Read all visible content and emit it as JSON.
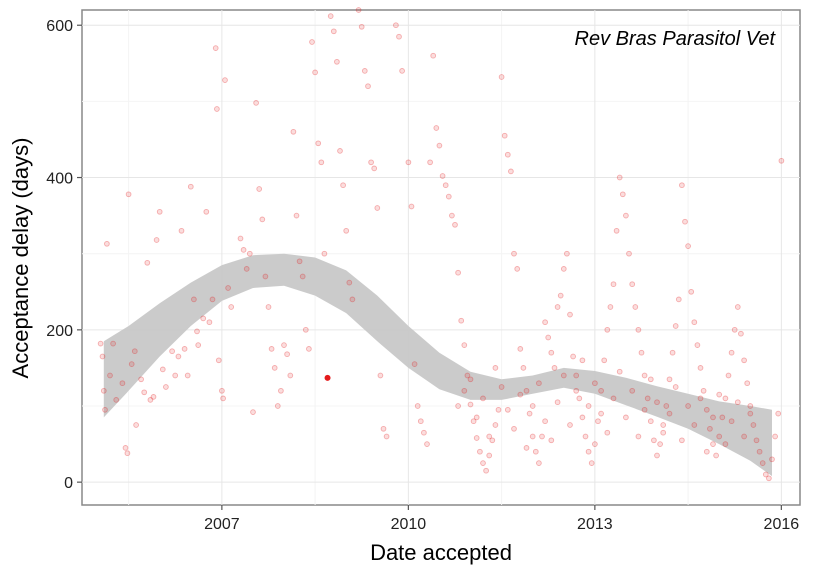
{
  "chart_data": {
    "type": "scatter",
    "title": "Rev Bras Parasitol Vet",
    "xlabel": "Date accepted",
    "ylabel": "Acceptance delay (days)",
    "xlim": [
      2004.75,
      2016.3
    ],
    "ylim": [
      -30,
      620
    ],
    "x_ticks": [
      2007,
      2010,
      2013,
      2016
    ],
    "y_ticks": [
      0,
      200,
      400,
      600
    ],
    "grid": true,
    "point_color": "#e41a1c",
    "band_color": "#c8c8c8",
    "smooth_band": [
      {
        "x": 2005.1,
        "lo": 85,
        "hi": 185
      },
      {
        "x": 2005.5,
        "lo": 120,
        "hi": 205
      },
      {
        "x": 2006.0,
        "lo": 165,
        "hi": 235
      },
      {
        "x": 2006.5,
        "lo": 205,
        "hi": 262
      },
      {
        "x": 2007.0,
        "lo": 238,
        "hi": 285
      },
      {
        "x": 2007.5,
        "lo": 255,
        "hi": 298
      },
      {
        "x": 2008.0,
        "lo": 258,
        "hi": 300
      },
      {
        "x": 2008.5,
        "lo": 245,
        "hi": 295
      },
      {
        "x": 2009.0,
        "lo": 222,
        "hi": 278
      },
      {
        "x": 2009.5,
        "lo": 185,
        "hi": 245
      },
      {
        "x": 2010.0,
        "lo": 150,
        "hi": 205
      },
      {
        "x": 2010.5,
        "lo": 122,
        "hi": 170
      },
      {
        "x": 2011.0,
        "lo": 108,
        "hi": 145
      },
      {
        "x": 2011.5,
        "lo": 108,
        "hi": 135
      },
      {
        "x": 2012.0,
        "lo": 116,
        "hi": 140
      },
      {
        "x": 2012.5,
        "lo": 124,
        "hi": 150
      },
      {
        "x": 2013.0,
        "lo": 116,
        "hi": 146
      },
      {
        "x": 2013.5,
        "lo": 101,
        "hi": 137
      },
      {
        "x": 2014.0,
        "lo": 86,
        "hi": 126
      },
      {
        "x": 2014.5,
        "lo": 70,
        "hi": 116
      },
      {
        "x": 2015.0,
        "lo": 50,
        "hi": 106
      },
      {
        "x": 2015.5,
        "lo": 28,
        "hi": 100
      },
      {
        "x": 2015.85,
        "lo": 8,
        "hi": 95
      }
    ],
    "highlight_point": {
      "x": 2008.7,
      "y": 137
    },
    "points": [
      [
        2005.05,
        182
      ],
      [
        2005.08,
        165
      ],
      [
        2005.1,
        120
      ],
      [
        2005.12,
        95
      ],
      [
        2005.15,
        313
      ],
      [
        2005.2,
        140
      ],
      [
        2005.25,
        182
      ],
      [
        2005.3,
        108
      ],
      [
        2005.4,
        130
      ],
      [
        2005.45,
        45
      ],
      [
        2005.48,
        38
      ],
      [
        2005.5,
        378
      ],
      [
        2005.55,
        155
      ],
      [
        2005.6,
        172
      ],
      [
        2005.62,
        75
      ],
      [
        2005.7,
        135
      ],
      [
        2005.75,
        118
      ],
      [
        2005.8,
        288
      ],
      [
        2005.85,
        108
      ],
      [
        2005.9,
        112
      ],
      [
        2005.95,
        318
      ],
      [
        2006.0,
        355
      ],
      [
        2006.05,
        148
      ],
      [
        2006.1,
        125
      ],
      [
        2006.2,
        172
      ],
      [
        2006.25,
        140
      ],
      [
        2006.3,
        165
      ],
      [
        2006.35,
        330
      ],
      [
        2006.4,
        175
      ],
      [
        2006.45,
        140
      ],
      [
        2006.5,
        388
      ],
      [
        2006.55,
        240
      ],
      [
        2006.6,
        198
      ],
      [
        2006.62,
        180
      ],
      [
        2006.7,
        215
      ],
      [
        2006.75,
        355
      ],
      [
        2006.8,
        210
      ],
      [
        2006.85,
        240
      ],
      [
        2006.9,
        570
      ],
      [
        2006.92,
        490
      ],
      [
        2006.95,
        160
      ],
      [
        2007.0,
        120
      ],
      [
        2007.02,
        110
      ],
      [
        2007.05,
        528
      ],
      [
        2007.1,
        255
      ],
      [
        2007.15,
        230
      ],
      [
        2007.3,
        320
      ],
      [
        2007.35,
        305
      ],
      [
        2007.4,
        280
      ],
      [
        2007.45,
        300
      ],
      [
        2007.5,
        92
      ],
      [
        2007.55,
        498
      ],
      [
        2007.6,
        385
      ],
      [
        2007.65,
        345
      ],
      [
        2007.7,
        270
      ],
      [
        2007.75,
        230
      ],
      [
        2007.8,
        175
      ],
      [
        2007.85,
        150
      ],
      [
        2007.9,
        100
      ],
      [
        2007.95,
        120
      ],
      [
        2008.0,
        180
      ],
      [
        2008.05,
        168
      ],
      [
        2008.1,
        140
      ],
      [
        2008.15,
        460
      ],
      [
        2008.2,
        350
      ],
      [
        2008.25,
        290
      ],
      [
        2008.3,
        270
      ],
      [
        2008.35,
        200
      ],
      [
        2008.4,
        175
      ],
      [
        2008.45,
        578
      ],
      [
        2008.5,
        538
      ],
      [
        2008.55,
        445
      ],
      [
        2008.6,
        420
      ],
      [
        2008.65,
        300
      ],
      [
        2008.75,
        612
      ],
      [
        2008.8,
        592
      ],
      [
        2008.85,
        552
      ],
      [
        2008.9,
        435
      ],
      [
        2008.95,
        390
      ],
      [
        2009.0,
        330
      ],
      [
        2009.05,
        262
      ],
      [
        2009.1,
        240
      ],
      [
        2009.2,
        620
      ],
      [
        2009.25,
        598
      ],
      [
        2009.3,
        540
      ],
      [
        2009.35,
        520
      ],
      [
        2009.4,
        420
      ],
      [
        2009.45,
        412
      ],
      [
        2009.5,
        360
      ],
      [
        2009.55,
        140
      ],
      [
        2009.6,
        70
      ],
      [
        2009.65,
        60
      ],
      [
        2009.8,
        600
      ],
      [
        2009.85,
        585
      ],
      [
        2009.9,
        540
      ],
      [
        2010.0,
        420
      ],
      [
        2010.05,
        362
      ],
      [
        2010.1,
        155
      ],
      [
        2010.15,
        100
      ],
      [
        2010.2,
        80
      ],
      [
        2010.25,
        65
      ],
      [
        2010.3,
        50
      ],
      [
        2010.35,
        420
      ],
      [
        2010.4,
        560
      ],
      [
        2010.45,
        465
      ],
      [
        2010.5,
        442
      ],
      [
        2010.55,
        402
      ],
      [
        2010.6,
        390
      ],
      [
        2010.65,
        375
      ],
      [
        2010.7,
        350
      ],
      [
        2010.75,
        338
      ],
      [
        2010.8,
        275
      ],
      [
        2010.85,
        212
      ],
      [
        2010.9,
        180
      ],
      [
        2010.95,
        140
      ],
      [
        2011.0,
        102
      ],
      [
        2011.05,
        80
      ],
      [
        2011.1,
        58
      ],
      [
        2011.15,
        40
      ],
      [
        2011.2,
        25
      ],
      [
        2011.25,
        15
      ],
      [
        2011.3,
        35
      ],
      [
        2011.35,
        55
      ],
      [
        2011.4,
        75
      ],
      [
        2011.45,
        95
      ],
      [
        2011.5,
        532
      ],
      [
        2011.55,
        455
      ],
      [
        2011.6,
        430
      ],
      [
        2011.65,
        408
      ],
      [
        2011.7,
        300
      ],
      [
        2011.75,
        280
      ],
      [
        2011.8,
        175
      ],
      [
        2011.85,
        150
      ],
      [
        2011.9,
        120
      ],
      [
        2011.95,
        90
      ],
      [
        2012.0,
        60
      ],
      [
        2012.05,
        40
      ],
      [
        2012.1,
        25
      ],
      [
        2012.15,
        60
      ],
      [
        2012.2,
        210
      ],
      [
        2012.25,
        190
      ],
      [
        2012.3,
        170
      ],
      [
        2012.35,
        150
      ],
      [
        2012.4,
        230
      ],
      [
        2012.45,
        245
      ],
      [
        2012.5,
        280
      ],
      [
        2012.55,
        300
      ],
      [
        2012.6,
        220
      ],
      [
        2012.65,
        165
      ],
      [
        2012.7,
        140
      ],
      [
        2012.75,
        110
      ],
      [
        2012.8,
        85
      ],
      [
        2012.85,
        60
      ],
      [
        2012.9,
        40
      ],
      [
        2012.95,
        25
      ],
      [
        2013.0,
        50
      ],
      [
        2013.05,
        80
      ],
      [
        2013.1,
        120
      ],
      [
        2013.15,
        160
      ],
      [
        2013.2,
        200
      ],
      [
        2013.25,
        230
      ],
      [
        2013.3,
        260
      ],
      [
        2013.35,
        330
      ],
      [
        2013.4,
        400
      ],
      [
        2013.45,
        378
      ],
      [
        2013.5,
        350
      ],
      [
        2013.55,
        300
      ],
      [
        2013.6,
        260
      ],
      [
        2013.65,
        230
      ],
      [
        2013.7,
        200
      ],
      [
        2013.75,
        170
      ],
      [
        2013.8,
        140
      ],
      [
        2013.85,
        110
      ],
      [
        2013.9,
        80
      ],
      [
        2013.95,
        55
      ],
      [
        2014.0,
        35
      ],
      [
        2014.05,
        50
      ],
      [
        2014.1,
        75
      ],
      [
        2014.15,
        100
      ],
      [
        2014.2,
        135
      ],
      [
        2014.25,
        170
      ],
      [
        2014.3,
        205
      ],
      [
        2014.35,
        240
      ],
      [
        2014.4,
        390
      ],
      [
        2014.45,
        342
      ],
      [
        2014.5,
        310
      ],
      [
        2014.55,
        250
      ],
      [
        2014.6,
        210
      ],
      [
        2014.65,
        180
      ],
      [
        2014.7,
        150
      ],
      [
        2014.75,
        120
      ],
      [
        2014.8,
        95
      ],
      [
        2014.85,
        70
      ],
      [
        2014.9,
        50
      ],
      [
        2014.95,
        35
      ],
      [
        2015.0,
        60
      ],
      [
        2015.05,
        85
      ],
      [
        2015.1,
        110
      ],
      [
        2015.15,
        140
      ],
      [
        2015.2,
        170
      ],
      [
        2015.25,
        200
      ],
      [
        2015.3,
        230
      ],
      [
        2015.35,
        195
      ],
      [
        2015.4,
        160
      ],
      [
        2015.45,
        130
      ],
      [
        2015.5,
        100
      ],
      [
        2015.55,
        75
      ],
      [
        2015.6,
        55
      ],
      [
        2015.65,
        40
      ],
      [
        2015.7,
        25
      ],
      [
        2015.75,
        10
      ],
      [
        2015.8,
        5
      ],
      [
        2015.85,
        30
      ],
      [
        2015.9,
        60
      ],
      [
        2015.95,
        90
      ],
      [
        2016.0,
        422
      ],
      [
        2010.8,
        100
      ],
      [
        2010.9,
        120
      ],
      [
        2011.0,
        135
      ],
      [
        2011.1,
        85
      ],
      [
        2011.2,
        110
      ],
      [
        2011.3,
        60
      ],
      [
        2011.4,
        150
      ],
      [
        2011.5,
        125
      ],
      [
        2011.6,
        95
      ],
      [
        2011.7,
        70
      ],
      [
        2011.8,
        115
      ],
      [
        2011.9,
        45
      ],
      [
        2012.0,
        100
      ],
      [
        2012.1,
        130
      ],
      [
        2012.2,
        80
      ],
      [
        2012.3,
        55
      ],
      [
        2012.4,
        105
      ],
      [
        2012.5,
        140
      ],
      [
        2012.6,
        75
      ],
      [
        2012.7,
        120
      ],
      [
        2012.8,
        160
      ],
      [
        2012.9,
        100
      ],
      [
        2013.0,
        130
      ],
      [
        2013.1,
        90
      ],
      [
        2013.2,
        65
      ],
      [
        2013.3,
        110
      ],
      [
        2013.4,
        145
      ],
      [
        2013.5,
        85
      ],
      [
        2013.6,
        120
      ],
      [
        2013.7,
        60
      ],
      [
        2013.8,
        95
      ],
      [
        2013.9,
        135
      ],
      [
        2014.0,
        105
      ],
      [
        2014.1,
        65
      ],
      [
        2014.2,
        90
      ],
      [
        2014.3,
        125
      ],
      [
        2014.4,
        55
      ],
      [
        2014.5,
        100
      ],
      [
        2014.6,
        75
      ],
      [
        2014.7,
        110
      ],
      [
        2014.8,
        40
      ],
      [
        2014.9,
        85
      ],
      [
        2015.0,
        115
      ],
      [
        2015.1,
        50
      ],
      [
        2015.2,
        80
      ],
      [
        2015.3,
        105
      ],
      [
        2015.4,
        60
      ],
      [
        2015.5,
        90
      ]
    ]
  }
}
